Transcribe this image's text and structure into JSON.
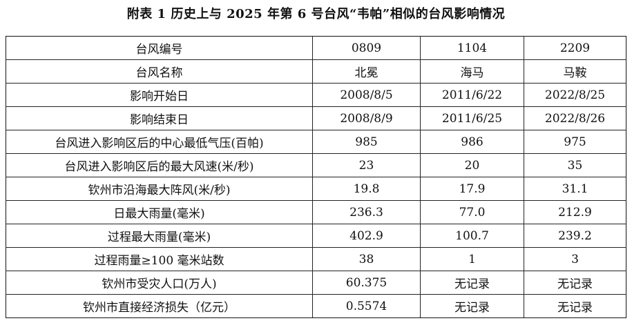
{
  "title": "附表 1   历史上与 2025 年第 6 号台风“韦帕”相似的台风影响情况",
  "rows": [
    {
      "label": "台风编号",
      "values": [
        "0809",
        "1104",
        "2209"
      ]
    },
    {
      "label": "台风名称",
      "values": [
        "北冕",
        "海马",
        "马鞍"
      ]
    },
    {
      "label": "影响开始日",
      "values": [
        "2008/8/5",
        "2011/6/22",
        "2022/8/25"
      ]
    },
    {
      "label": "影响结束日",
      "values": [
        "2008/8/9",
        "2011/6/25",
        "2022/8/26"
      ]
    },
    {
      "label": "台风进入影响区后的中心最低气压(百帕)",
      "values": [
        "985",
        "986",
        "975"
      ]
    },
    {
      "label": "台风进入影响区后的最大风速(米/秒)",
      "values": [
        "23",
        "20",
        "35"
      ]
    },
    {
      "label": "钦州市沿海最大阵风(米/秒)",
      "values": [
        "19.8",
        "17.9",
        "31.1"
      ]
    },
    {
      "label": "日最大雨量(毫米)",
      "values": [
        "236.3",
        "77.0",
        "212.9"
      ]
    },
    {
      "label": "过程最大雨量(毫米)",
      "values": [
        "402.9",
        "100.7",
        "239.2"
      ]
    },
    {
      "label": "过程雨量≥100 毫米站数",
      "values": [
        "38",
        "1",
        "3"
      ]
    },
    {
      "label": "钦州市受灾人口(万人)",
      "values": [
        "60.375",
        "无记录",
        "无记录"
      ]
    },
    {
      "label": "钦州市直接经济损失（亿元）",
      "values": [
        "0.5574",
        "无记录",
        "无记录"
      ]
    }
  ]
}
